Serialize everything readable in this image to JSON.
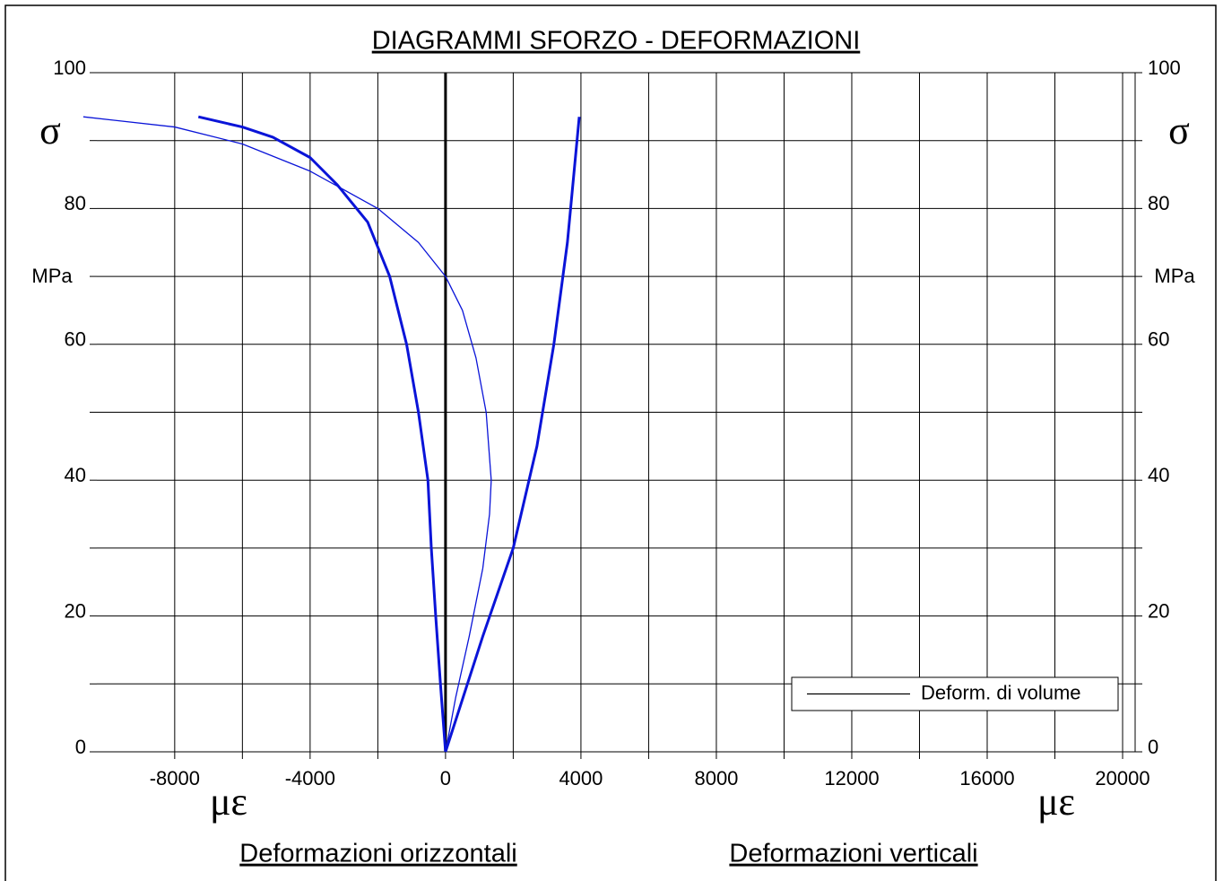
{
  "chart_data": {
    "type": "line",
    "title": "DIAGRAMMI   SFORZO - DEFORMAZIONI",
    "y_symbol": "σ",
    "y_unit": "MPa",
    "x_symbol": "με",
    "x_label_left": "Deformazioni orizzontali",
    "x_label_right": "Deformazioni verticali",
    "xlim": [
      -10300,
      20370
    ],
    "ylim": [
      0,
      100
    ],
    "xticks": [
      -8000,
      -4000,
      0,
      4000,
      8000,
      12000,
      16000,
      20000
    ],
    "yticks": [
      0,
      20,
      40,
      60,
      80,
      100
    ],
    "xgrid": [
      -8000,
      -6000,
      -4000,
      -2000,
      0,
      2000,
      4000,
      6000,
      8000,
      10000,
      12000,
      14000,
      16000,
      18000,
      20000
    ],
    "ygrid": [
      0,
      10,
      20,
      30,
      40,
      50,
      60,
      70,
      80,
      90,
      100
    ],
    "grid": true,
    "legend": "lower right",
    "series": [
      {
        "color": "#0a14d8",
        "width": 3,
        "x": [
          0,
          -150,
          -290,
          -420,
          -520,
          -800,
          -1150,
          -1650,
          -2300,
          -3200,
          -4000,
          -5100,
          -6000,
          -7300
        ],
        "values": [
          0,
          10,
          20,
          30,
          40,
          50,
          60,
          70,
          78,
          83.5,
          87.5,
          90.5,
          92,
          93.5
        ]
      },
      {
        "color": "#0a14d8",
        "width": 3,
        "x": [
          0,
          1100,
          2000,
          2700,
          3200,
          3600,
          3950
        ],
        "values": [
          0,
          17,
          30,
          45,
          60,
          75,
          93.5
        ]
      },
      {
        "name": "Deform. di volume",
        "color": "#0a14d8",
        "width": 1.3,
        "x": [
          -10700,
          -8000,
          -6000,
          -4000,
          -2000,
          -800,
          0,
          500,
          900,
          1200,
          1350,
          1300,
          1100,
          700,
          300,
          0
        ],
        "values": [
          93.5,
          92,
          89.5,
          85.5,
          80,
          75,
          70,
          65,
          58,
          50,
          40,
          35,
          27,
          17,
          8,
          0
        ]
      }
    ]
  }
}
